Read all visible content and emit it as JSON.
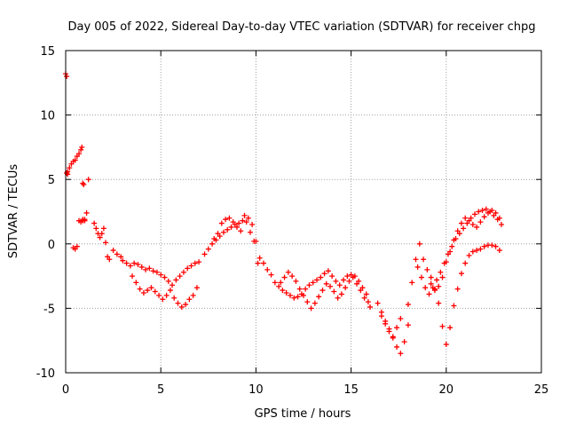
{
  "chart_data": {
    "type": "scatter",
    "title": "Day 005 of 2022, Sidereal Day-to-day VTEC variation (SDTVAR) for receiver chpg",
    "xlabel": "GPS time / hours",
    "ylabel": "SDTVAR / TECUs",
    "xlim": [
      0,
      25
    ],
    "ylim": [
      -10,
      15
    ],
    "xticks": [
      0,
      5,
      10,
      15,
      20,
      25
    ],
    "yticks": [
      -10,
      -5,
      0,
      5,
      10,
      15
    ],
    "grid": true,
    "marker": "+",
    "colors": {
      "series": "#ff0000",
      "grid": "#a0a0a0",
      "axis": "#000000"
    },
    "series": [
      {
        "name": "SDTVAR",
        "x": [
          0.0,
          0.05,
          0.05,
          0.1,
          0.1,
          0.2,
          0.3,
          0.4,
          0.5,
          0.6,
          0.7,
          0.8,
          0.85,
          0.9,
          0.95,
          0.9,
          1.0,
          1.2,
          0.4,
          0.5,
          0.6,
          0.7,
          0.8,
          0.9,
          1.0,
          1.1,
          1.5,
          1.6,
          1.7,
          1.8,
          1.9,
          2.0,
          2.1,
          2.2,
          2.3,
          2.5,
          2.7,
          2.9,
          3.0,
          3.2,
          3.4,
          3.6,
          3.8,
          4.0,
          4.2,
          4.4,
          4.6,
          4.8,
          5.0,
          5.2,
          5.4,
          5.6,
          5.8,
          6.0,
          6.2,
          6.4,
          6.6,
          6.8,
          7.0,
          3.5,
          3.7,
          3.9,
          4.1,
          4.3,
          4.5,
          4.7,
          4.9,
          5.1,
          5.3,
          5.5,
          5.7,
          5.9,
          6.1,
          6.3,
          6.5,
          6.7,
          6.9,
          7.3,
          7.5,
          7.7,
          7.9,
          8.1,
          8.3,
          8.5,
          8.7,
          8.9,
          9.1,
          9.3,
          9.5,
          9.7,
          9.9,
          10.1,
          7.8,
          8.0,
          8.2,
          8.4,
          8.6,
          8.8,
          9.0,
          9.2,
          9.4,
          9.6,
          9.8,
          10.0,
          10.2,
          10.4,
          10.6,
          10.8,
          11.0,
          11.2,
          11.4,
          11.6,
          11.8,
          12.0,
          12.2,
          12.4,
          12.6,
          12.8,
          13.0,
          13.2,
          13.4,
          13.6,
          13.8,
          14.0,
          14.2,
          14.4,
          14.6,
          14.8,
          15.0,
          15.2,
          15.4,
          15.6,
          15.8,
          16.0,
          11.3,
          11.5,
          11.7,
          11.9,
          12.1,
          12.3,
          12.5,
          12.7,
          12.9,
          13.1,
          13.3,
          13.5,
          13.7,
          13.9,
          14.1,
          14.3,
          14.5,
          14.7,
          14.9,
          15.1,
          15.3,
          15.5,
          15.7,
          15.9,
          16.4,
          16.6,
          16.8,
          17.0,
          17.2,
          17.4,
          17.6,
          17.8,
          18.0,
          16.6,
          16.8,
          17.0,
          17.2,
          17.4,
          17.6,
          18.0,
          18.2,
          18.4,
          18.6,
          18.8,
          19.0,
          19.2,
          19.4,
          19.6,
          19.8,
          20.0,
          20.2,
          20.4,
          20.6,
          20.8,
          21.0,
          21.2,
          21.4,
          21.6,
          21.8,
          22.0,
          22.2,
          22.4,
          22.6,
          22.8,
          18.5,
          18.7,
          18.9,
          19.1,
          19.3,
          19.5,
          19.7,
          19.9,
          20.1,
          20.3,
          20.5,
          20.7,
          20.9,
          21.1,
          21.3,
          21.5,
          21.7,
          21.9,
          22.1,
          22.3,
          22.5,
          22.7,
          22.9,
          19.2,
          19.4,
          19.6,
          19.8,
          20.0,
          20.2,
          20.4,
          20.6,
          20.8,
          21.0,
          21.2,
          21.4,
          21.6,
          21.8,
          22.0,
          22.2,
          22.4,
          22.6,
          22.8
        ],
        "y": [
          13.2,
          13.0,
          5.5,
          5.4,
          5.6,
          5.9,
          6.2,
          6.4,
          6.5,
          6.8,
          7.0,
          7.3,
          7.5,
          4.7,
          4.6,
          1.8,
          1.9,
          5.0,
          -0.3,
          -0.4,
          -0.2,
          1.8,
          1.7,
          1.9,
          1.8,
          2.4,
          1.6,
          1.2,
          0.8,
          0.5,
          0.8,
          1.2,
          0.1,
          -1.0,
          -1.2,
          -0.5,
          -0.8,
          -1.0,
          -1.3,
          -1.5,
          -1.7,
          -1.5,
          -1.6,
          -1.8,
          -2.0,
          -1.9,
          -2.1,
          -2.2,
          -2.4,
          -2.6,
          -2.9,
          -3.2,
          -2.8,
          -2.5,
          -2.2,
          -1.9,
          -1.7,
          -1.5,
          -1.4,
          -2.5,
          -3.0,
          -3.5,
          -3.8,
          -3.6,
          -3.4,
          -3.7,
          -4.0,
          -4.3,
          -4.0,
          -3.6,
          -4.2,
          -4.6,
          -4.9,
          -4.7,
          -4.3,
          -4.0,
          -3.4,
          -0.8,
          -0.4,
          0.0,
          0.3,
          0.6,
          0.9,
          1.1,
          1.3,
          1.5,
          1.6,
          1.8,
          1.7,
          0.9,
          0.2,
          -1.5,
          0.4,
          0.8,
          1.6,
          1.9,
          2.0,
          1.7,
          1.3,
          1.0,
          2.2,
          2.0,
          1.5,
          0.2,
          -1.1,
          -1.5,
          -2.0,
          -2.4,
          -3.0,
          -3.3,
          -3.6,
          -3.8,
          -4.0,
          -4.2,
          -4.1,
          -3.9,
          -3.5,
          -3.2,
          -3.0,
          -2.8,
          -2.6,
          -2.3,
          -2.1,
          -2.5,
          -2.9,
          -3.2,
          -2.8,
          -2.5,
          -2.4,
          -2.5,
          -2.9,
          -3.4,
          -3.9,
          -4.9,
          -3.0,
          -2.6,
          -2.2,
          -2.5,
          -2.9,
          -3.5,
          -4.0,
          -4.5,
          -5.0,
          -4.6,
          -4.1,
          -3.6,
          -3.1,
          -3.3,
          -3.7,
          -4.2,
          -3.9,
          -3.4,
          -2.9,
          -2.6,
          -3.1,
          -3.6,
          -4.2,
          -4.5,
          -4.6,
          -5.3,
          -6.0,
          -6.6,
          -7.3,
          -8.0,
          -8.5,
          -7.6,
          -6.3,
          -5.6,
          -6.2,
          -6.8,
          -7.2,
          -6.5,
          -5.8,
          -4.7,
          -3.0,
          -1.2,
          0.0,
          -1.2,
          -2.0,
          -2.6,
          -3.5,
          -4.6,
          -6.4,
          -7.8,
          -6.5,
          -4.8,
          -3.5,
          -2.3,
          -1.5,
          -0.9,
          -0.6,
          -0.5,
          -0.4,
          -0.2,
          -0.1,
          -0.1,
          -0.2,
          -0.5,
          -1.8,
          -2.6,
          -3.4,
          -3.9,
          -3.4,
          -2.8,
          -2.2,
          -1.5,
          -0.8,
          -0.2,
          0.4,
          0.8,
          1.2,
          1.6,
          2.0,
          2.3,
          2.5,
          2.6,
          2.7,
          2.5,
          2.2,
          1.9,
          1.5,
          -3.1,
          -3.6,
          -3.3,
          -2.6,
          -1.4,
          -0.6,
          0.3,
          1.0,
          1.6,
          2.0,
          1.8,
          1.5,
          1.3,
          1.7,
          2.1,
          2.4,
          2.6,
          2.4,
          2.0
        ]
      }
    ]
  }
}
